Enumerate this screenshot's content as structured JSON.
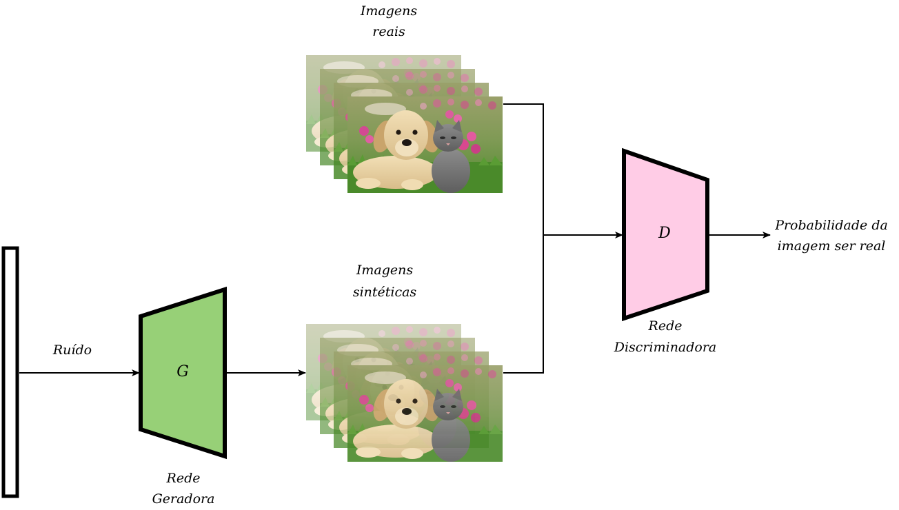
{
  "labels": {
    "real_images_l1": "Imagens",
    "real_images_l2": "reais",
    "synthetic_images_l1": "Imagens",
    "synthetic_images_l2": "sintéticas",
    "noise": "Ruído",
    "generator_symbol": "G",
    "generator_name_l1": "Rede",
    "generator_name_l2": "Geradora",
    "discriminator_symbol": "D",
    "discriminator_name_l1": "Rede",
    "discriminator_name_l2": "Discriminadora",
    "output_l1": "Probabilidade da",
    "output_l2": "imagem ser real"
  },
  "colors": {
    "generator_fill": "#97d077",
    "discriminator_fill": "#ffcce6",
    "stroke": "#000000"
  },
  "image_stacks": {
    "real": {
      "count": 4,
      "subject": "puppy-and-kitten-photo"
    },
    "synthetic": {
      "count": 4,
      "subject": "puppy-and-kitten-photo"
    }
  }
}
